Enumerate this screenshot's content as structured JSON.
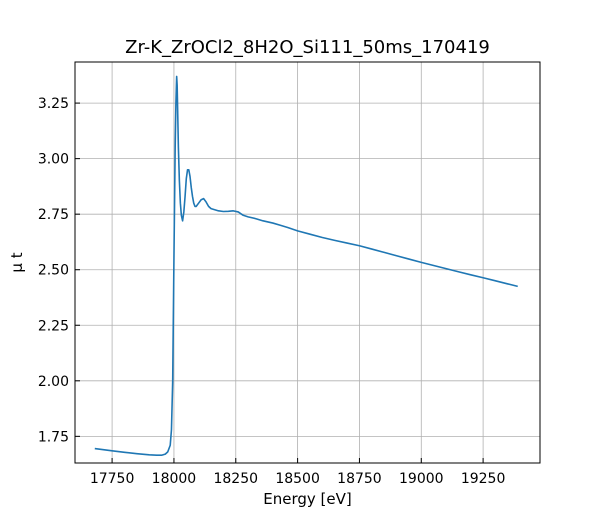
{
  "chart_data": {
    "type": "line",
    "title": "Zr-K_ZrOCl2_8H2O_Si111_50ms_170419",
    "xlabel": "Energy [eV]",
    "ylabel": "μ t",
    "xlim": [
      17600,
      19480
    ],
    "ylim": [
      1.63,
      3.435
    ],
    "x_ticks": [
      17750,
      18000,
      18250,
      18500,
      18750,
      19000,
      19250
    ],
    "x_tick_labels": [
      "17750",
      "18000",
      "18250",
      "18500",
      "18750",
      "19000",
      "19250"
    ],
    "y_ticks": [
      1.75,
      2.0,
      2.25,
      2.5,
      2.75,
      3.0,
      3.25
    ],
    "y_tick_labels": [
      "1.75",
      "2.00",
      "2.25",
      "2.50",
      "2.75",
      "3.00",
      "3.25"
    ],
    "grid": true,
    "color": "#1f77b4",
    "series": [
      {
        "x": [
          17680,
          17750,
          17800,
          17850,
          17900,
          17930,
          17950,
          17965,
          17975,
          17985,
          17990,
          17995,
          18000,
          18005,
          18008,
          18011,
          18013,
          18015,
          18018,
          18022,
          18026,
          18030,
          18035,
          18040,
          18045,
          18050,
          18055,
          18060,
          18065,
          18070,
          18075,
          18080,
          18085,
          18090,
          18100,
          18110,
          18120,
          18130,
          18140,
          18150,
          18165,
          18180,
          18200,
          18220,
          18240,
          18260,
          18280,
          18300,
          18330,
          18360,
          18400,
          18430,
          18460,
          18500,
          18550,
          18600,
          18650,
          18700,
          18750,
          18800,
          18850,
          18900,
          18950,
          19000,
          19050,
          19100,
          19150,
          19200,
          19250,
          19300,
          19350,
          19390
        ],
        "y": [
          1.695,
          1.685,
          1.678,
          1.672,
          1.667,
          1.665,
          1.665,
          1.67,
          1.68,
          1.71,
          1.78,
          2.0,
          2.55,
          3.05,
          3.25,
          3.37,
          3.33,
          3.22,
          3.05,
          2.9,
          2.8,
          2.745,
          2.72,
          2.76,
          2.83,
          2.91,
          2.95,
          2.95,
          2.92,
          2.87,
          2.83,
          2.8,
          2.785,
          2.785,
          2.8,
          2.815,
          2.82,
          2.805,
          2.785,
          2.775,
          2.77,
          2.765,
          2.762,
          2.763,
          2.765,
          2.76,
          2.745,
          2.738,
          2.73,
          2.72,
          2.71,
          2.7,
          2.69,
          2.675,
          2.66,
          2.645,
          2.632,
          2.62,
          2.608,
          2.593,
          2.578,
          2.563,
          2.548,
          2.533,
          2.519,
          2.505,
          2.491,
          2.477,
          2.464,
          2.45,
          2.436,
          2.425
        ]
      }
    ]
  }
}
